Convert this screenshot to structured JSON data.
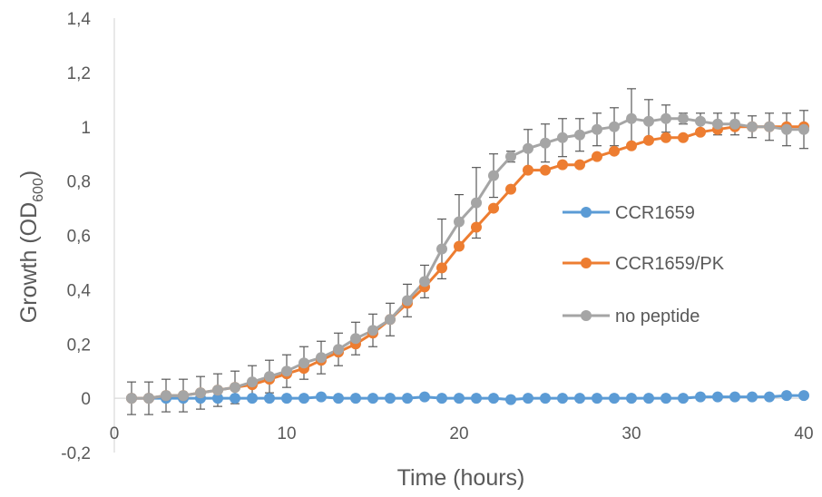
{
  "chart_data": {
    "type": "line",
    "xlabel": "Time (hours)",
    "ylabel_main": "Growth (OD",
    "ylabel_sub": "600",
    "ylabel_close": ")",
    "xlim": [
      0,
      40
    ],
    "ylim": [
      -0.2,
      1.4
    ],
    "xticks": [
      "0",
      "10",
      "20",
      "30",
      "40"
    ],
    "yticks": [
      "-0,2",
      "0",
      "0,2",
      "0,4",
      "0,6",
      "0,8",
      "1",
      "1,2",
      "1,4"
    ],
    "grid": false,
    "legend_position": "right",
    "x": [
      1,
      2,
      3,
      4,
      5,
      6,
      7,
      8,
      9,
      10,
      11,
      12,
      13,
      14,
      15,
      16,
      17,
      18,
      19,
      20,
      21,
      22,
      23,
      24,
      25,
      26,
      27,
      28,
      29,
      30,
      31,
      32,
      33,
      34,
      35,
      36,
      37,
      38,
      39,
      40
    ],
    "series": [
      {
        "name": "CCR1659",
        "color": "#5B9BD5",
        "values": [
          0,
          0,
          0,
          0,
          0,
          0,
          0,
          0,
          0,
          0,
          0,
          0.005,
          0,
          0,
          0,
          0,
          0,
          0.005,
          0,
          0,
          0,
          0,
          -0.005,
          0,
          0,
          0,
          0,
          0,
          0,
          0,
          0,
          0,
          0,
          0.005,
          0.005,
          0.005,
          0.005,
          0.005,
          0.01,
          0.01
        ],
        "errors": []
      },
      {
        "name": "CCR1659/PK",
        "color": "#ED7D31",
        "values": [
          0,
          0,
          0.01,
          0.01,
          0.02,
          0.03,
          0.04,
          0.05,
          0.07,
          0.09,
          0.11,
          0.14,
          0.17,
          0.2,
          0.24,
          0.29,
          0.35,
          0.41,
          0.48,
          0.56,
          0.63,
          0.7,
          0.77,
          0.84,
          0.84,
          0.86,
          0.86,
          0.89,
          0.91,
          0.93,
          0.95,
          0.96,
          0.96,
          0.98,
          0.99,
          1.0,
          1.0,
          1.0,
          1.0,
          1.0
        ],
        "errors": []
      },
      {
        "name": "no peptide",
        "color": "#A5A5A5",
        "values": [
          0,
          0,
          0.01,
          0.01,
          0.02,
          0.03,
          0.04,
          0.06,
          0.08,
          0.1,
          0.13,
          0.15,
          0.18,
          0.22,
          0.25,
          0.29,
          0.36,
          0.43,
          0.55,
          0.65,
          0.72,
          0.82,
          0.89,
          0.92,
          0.94,
          0.96,
          0.97,
          0.99,
          1.0,
          1.03,
          1.02,
          1.03,
          1.03,
          1.02,
          1.01,
          1.01,
          1.0,
          1.0,
          0.99,
          0.99
        ],
        "errors": [
          0.06,
          0.06,
          0.06,
          0.06,
          0.06,
          0.06,
          0.06,
          0.06,
          0.06,
          0.06,
          0.06,
          0.06,
          0.06,
          0.06,
          0.06,
          0.06,
          0.06,
          0.06,
          0.11,
          0.1,
          0.13,
          0.08,
          0.02,
          0.07,
          0.07,
          0.07,
          0.06,
          0.06,
          0.07,
          0.11,
          0.08,
          0.05,
          0.02,
          0.03,
          0.04,
          0.04,
          0.04,
          0.05,
          0.06,
          0.07
        ]
      }
    ]
  }
}
